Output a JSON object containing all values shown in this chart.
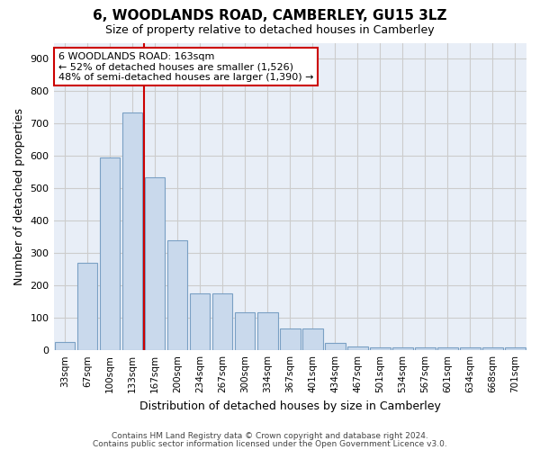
{
  "title": "6, WOODLANDS ROAD, CAMBERLEY, GU15 3LZ",
  "subtitle": "Size of property relative to detached houses in Camberley",
  "xlabel": "Distribution of detached houses by size in Camberley",
  "ylabel": "Number of detached properties",
  "bar_labels": [
    "33sqm",
    "67sqm",
    "100sqm",
    "133sqm",
    "167sqm",
    "200sqm",
    "234sqm",
    "267sqm",
    "300sqm",
    "334sqm",
    "367sqm",
    "401sqm",
    "434sqm",
    "467sqm",
    "501sqm",
    "534sqm",
    "567sqm",
    "601sqm",
    "634sqm",
    "668sqm",
    "701sqm"
  ],
  "bar_heights": [
    25,
    270,
    595,
    735,
    535,
    340,
    175,
    175,
    118,
    118,
    68,
    68,
    22,
    13,
    10,
    10,
    8,
    8,
    8,
    8,
    8
  ],
  "bar_color": "#c9d9ec",
  "bar_edgecolor": "#7aa0c4",
  "property_line_color": "#cc0000",
  "annotation_line1": "6 WOODLANDS ROAD: 163sqm",
  "annotation_line2": "← 52% of detached houses are smaller (1,526)",
  "annotation_line3": "48% of semi-detached houses are larger (1,390) →",
  "annotation_box_color": "#ffffff",
  "annotation_box_edgecolor": "#cc0000",
  "ylim": [
    0,
    950
  ],
  "yticks": [
    0,
    100,
    200,
    300,
    400,
    500,
    600,
    700,
    800,
    900
  ],
  "grid_color": "#cccccc",
  "bg_color": "#e8eef7",
  "footer1": "Contains HM Land Registry data © Crown copyright and database right 2024.",
  "footer2": "Contains public sector information licensed under the Open Government Licence v3.0.",
  "fig_width": 6.0,
  "fig_height": 5.0
}
